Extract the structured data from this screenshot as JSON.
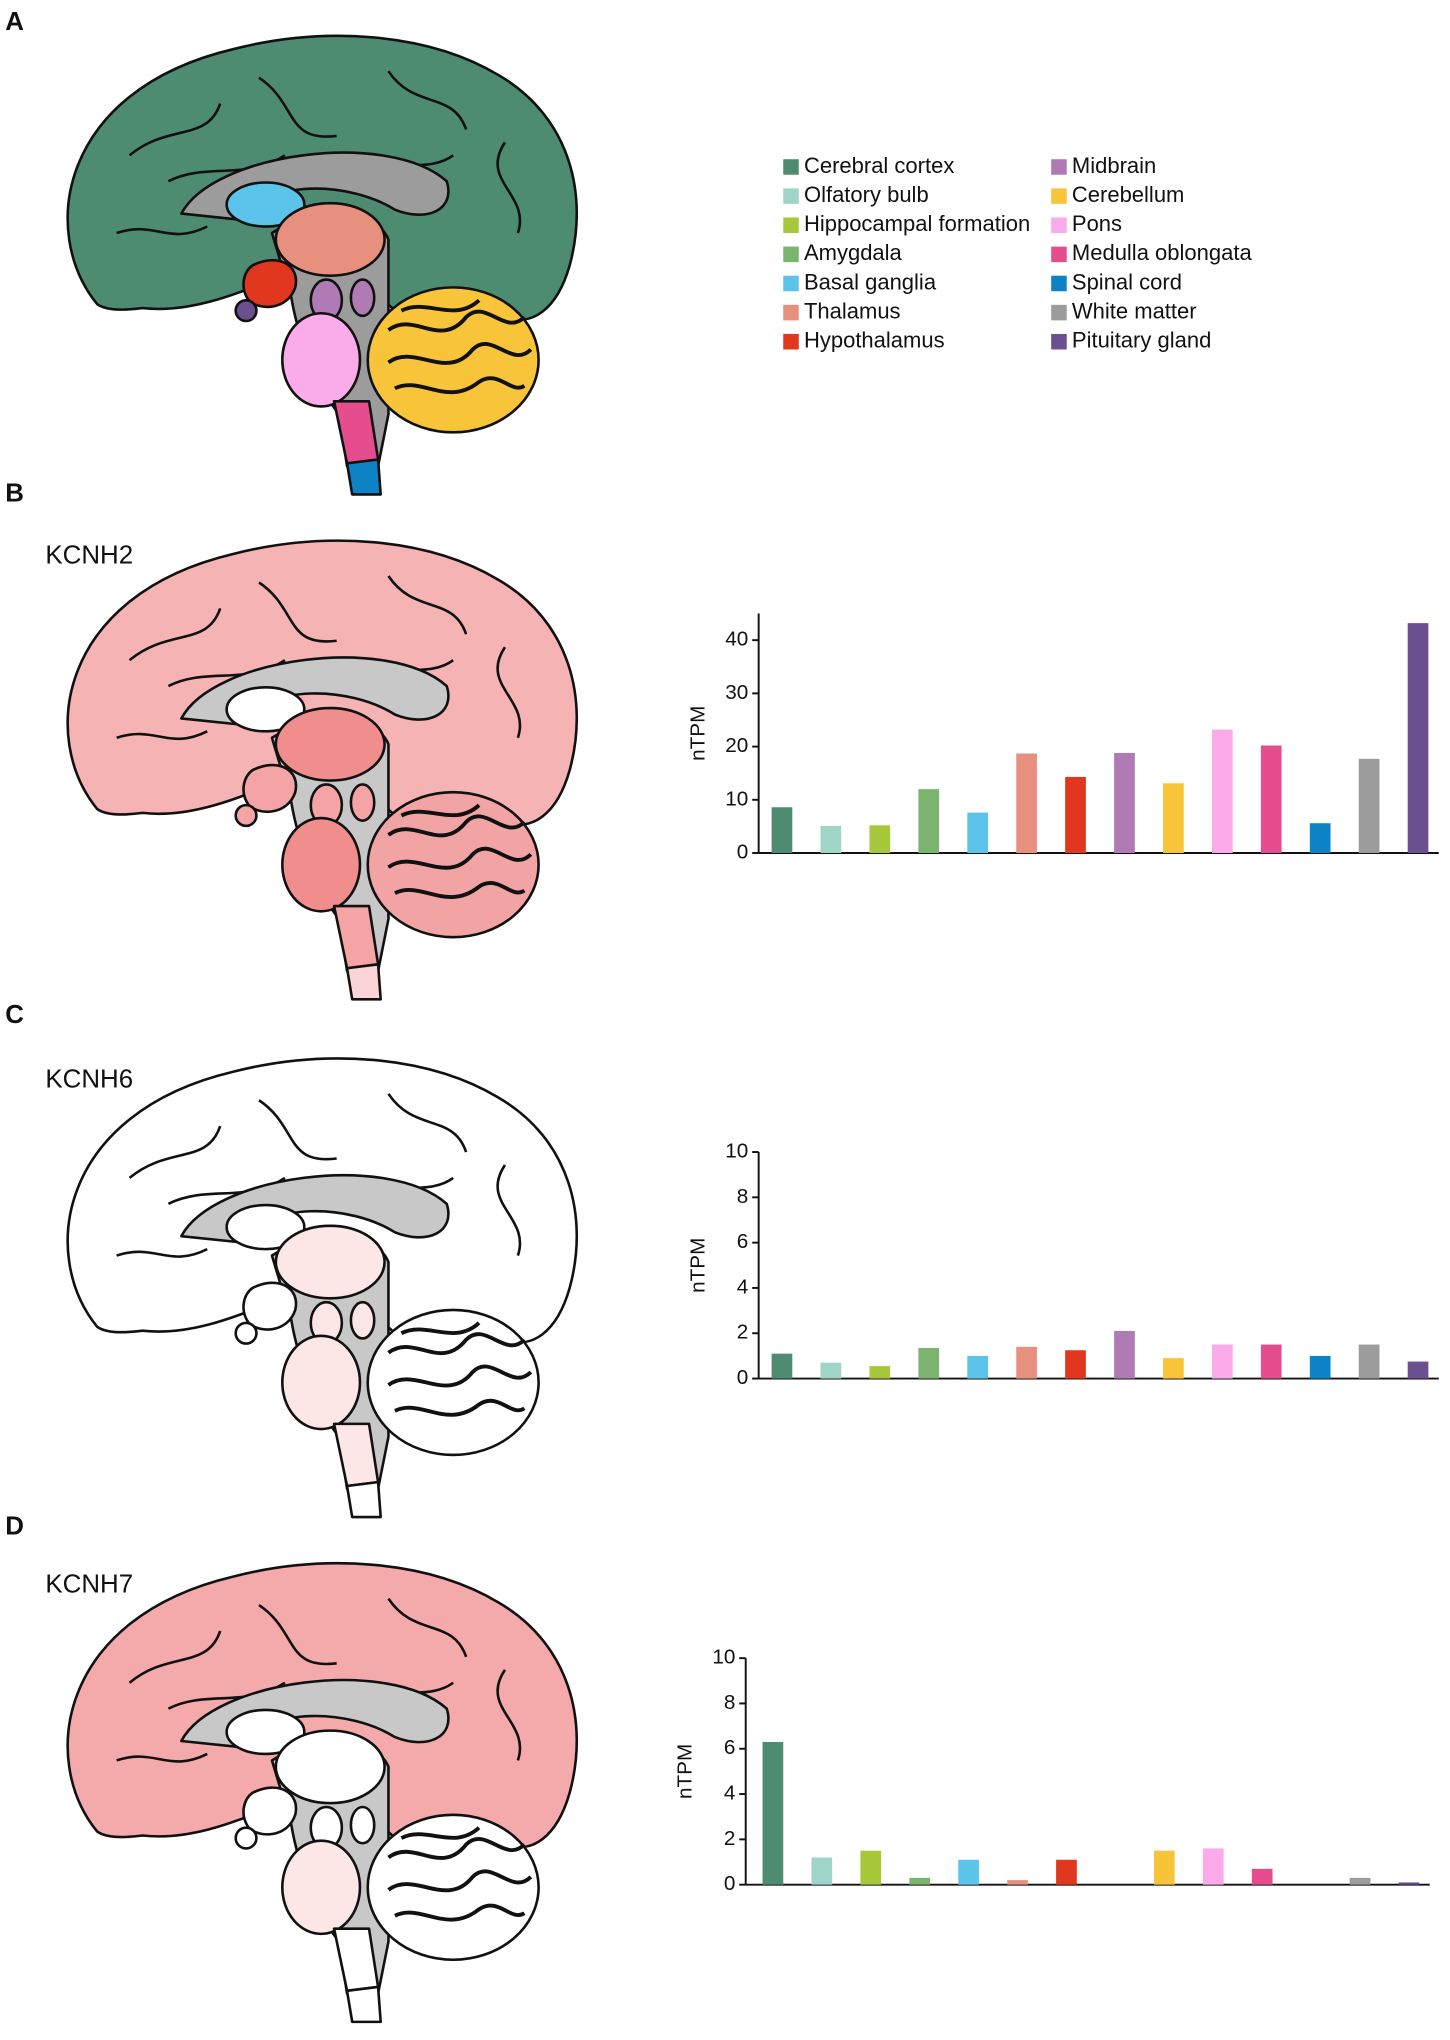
{
  "panels": [
    "A",
    "B",
    "C",
    "D"
  ],
  "legend": [
    {
      "name": "Cerebral cortex",
      "color": "#4e8c72"
    },
    {
      "name": "Olfatory bulb",
      "color": "#9fd5c8"
    },
    {
      "name": "Hippocampal formation",
      "color": "#a8c83c"
    },
    {
      "name": "Amygdala",
      "color": "#7cb36f"
    },
    {
      "name": "Basal ganglia",
      "color": "#5cc3ea"
    },
    {
      "name": "Thalamus",
      "color": "#e8907e"
    },
    {
      "name": "Hypothalamus",
      "color": "#e2371f"
    },
    {
      "name": "Midbrain",
      "color": "#b07ab5"
    },
    {
      "name": "Cerebellum",
      "color": "#f7c43a"
    },
    {
      "name": "Pons",
      "color": "#fbaaea"
    },
    {
      "name": "Medulla oblongata",
      "color": "#e54d8e"
    },
    {
      "name": "Spinal cord",
      "color": "#0d82c5"
    },
    {
      "name": "White matter",
      "color": "#9c9c9c"
    },
    {
      "name": "Pituitary gland",
      "color": "#6c4f8f"
    }
  ],
  "chart_data": [
    {
      "type": "bar",
      "title": "KCNH2",
      "ylabel": "nTPM",
      "values": [
        8.6,
        5.1,
        5.2,
        12.0,
        7.6,
        18.7,
        14.3,
        18.8,
        13.1,
        23.2,
        20.2,
        5.6,
        17.7,
        43.2
      ],
      "ylim": [
        0,
        45
      ],
      "yticks": [
        0,
        10,
        20,
        30,
        40
      ]
    },
    {
      "type": "bar",
      "title": "KCNH6",
      "ylabel": "nTPM",
      "values": [
        1.1,
        0.7,
        0.55,
        1.35,
        1.0,
        1.4,
        1.25,
        2.1,
        0.9,
        1.5,
        1.5,
        1.0,
        1.5,
        0.75
      ],
      "ylim": [
        0,
        10
      ],
      "yticks": [
        0,
        2,
        4,
        6,
        8,
        10
      ]
    },
    {
      "type": "bar",
      "title": "KCNH7",
      "ylabel": "nTPM",
      "values": [
        6.3,
        1.2,
        1.5,
        0.3,
        1.1,
        0.2,
        1.1,
        0,
        1.5,
        1.6,
        0.7,
        0,
        0.3,
        0.1
      ],
      "ylim": [
        0,
        10
      ],
      "yticks": [
        0,
        2,
        4,
        6,
        8,
        10
      ]
    }
  ]
}
